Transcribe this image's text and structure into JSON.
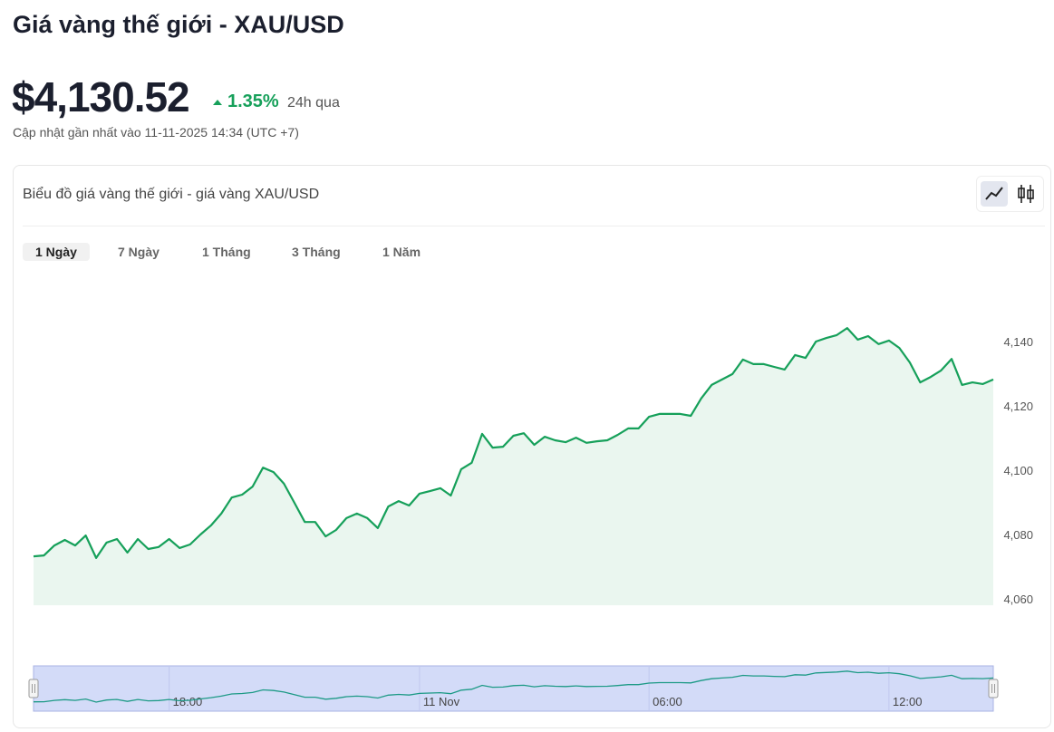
{
  "header": {
    "title": "Giá vàng thế giới - XAU/USD",
    "price": "$4,130.52",
    "change": "1.35%",
    "period": "24h qua",
    "updated": "Cập nhật gần nhất vào 11-11-2025 14:34 (UTC +7)"
  },
  "card": {
    "title": "Biểu đồ giá vàng thế giới - giá vàng XAU/USD",
    "tabs": [
      "1 Ngày",
      "7 Ngày",
      "1 Tháng",
      "3 Tháng",
      "1 Năm"
    ],
    "active_tab": 0
  },
  "chart_data": {
    "type": "area",
    "color": "#16a05a",
    "fill": "#eaf6ef",
    "grid": false,
    "ylim": [
      4058,
      4150
    ],
    "yticks": [
      {
        "value": 4060,
        "label": "4,060"
      },
      {
        "value": 4080,
        "label": "4,080"
      },
      {
        "value": 4100,
        "label": "4,100"
      },
      {
        "value": 4120,
        "label": "4,120"
      },
      {
        "value": 4140,
        "label": "4,140"
      }
    ],
    "categories": [
      null,
      null,
      null,
      null,
      null,
      null,
      null,
      null,
      null,
      null,
      null,
      null,
      null,
      "18:00",
      null,
      null,
      null,
      null,
      null,
      null,
      null,
      null,
      null,
      null,
      null,
      null,
      null,
      null,
      null,
      null,
      null,
      null,
      null,
      null,
      null,
      null,
      null,
      "11 Nov",
      null,
      null,
      null,
      null,
      null,
      null,
      null,
      null,
      null,
      null,
      null,
      null,
      null,
      null,
      null,
      null,
      null,
      null,
      null,
      null,
      null,
      "06:00",
      null,
      null,
      null,
      null,
      null,
      null,
      null,
      null,
      null,
      null,
      null,
      null,
      null,
      null,
      null,
      null,
      null,
      null,
      null,
      null,
      null,
      null,
      "12:00",
      null,
      null,
      null,
      null,
      null,
      null,
      null,
      null,
      null,
      null
    ],
    "values": [
      4073.2,
      4073.5,
      4076.6,
      4078.3,
      4076.6,
      4079.7,
      4072.7,
      4077.5,
      4078.6,
      4074.4,
      4078.6,
      4075.5,
      4076.1,
      4078.6,
      4075.8,
      4076.9,
      4080,
      4082.8,
      4086.5,
      4091.5,
      4092.4,
      4094.9,
      4100.8,
      4099.4,
      4095.8,
      4089.9,
      4083.9,
      4083.9,
      4079.4,
      4081.4,
      4085.1,
      4086.5,
      4085.1,
      4082,
      4088.7,
      4090.4,
      4089,
      4092.7,
      4093.5,
      4094.4,
      4092.1,
      4100.3,
      4102.3,
      4111.3,
      4107,
      4107.3,
      4110.7,
      4111.5,
      4107.9,
      4110.4,
      4109.3,
      4108.7,
      4110.1,
      4108.5,
      4109,
      4109.3,
      4111,
      4113,
      4113,
      4116.6,
      4117.5,
      4117.5,
      4117.5,
      4116.9,
      4122.3,
      4126.5,
      4128.2,
      4129.9,
      4134.4,
      4133,
      4133,
      4132.1,
      4131.3,
      4135.8,
      4134.9,
      4140,
      4141.1,
      4142,
      4144.2,
      4140.6,
      4141.7,
      4139.2,
      4140.3,
      4138,
      4133.5,
      4127.3,
      4129,
      4131,
      4134.6,
      4126.5,
      4127.3,
      4126.8,
      4128.2
    ]
  }
}
